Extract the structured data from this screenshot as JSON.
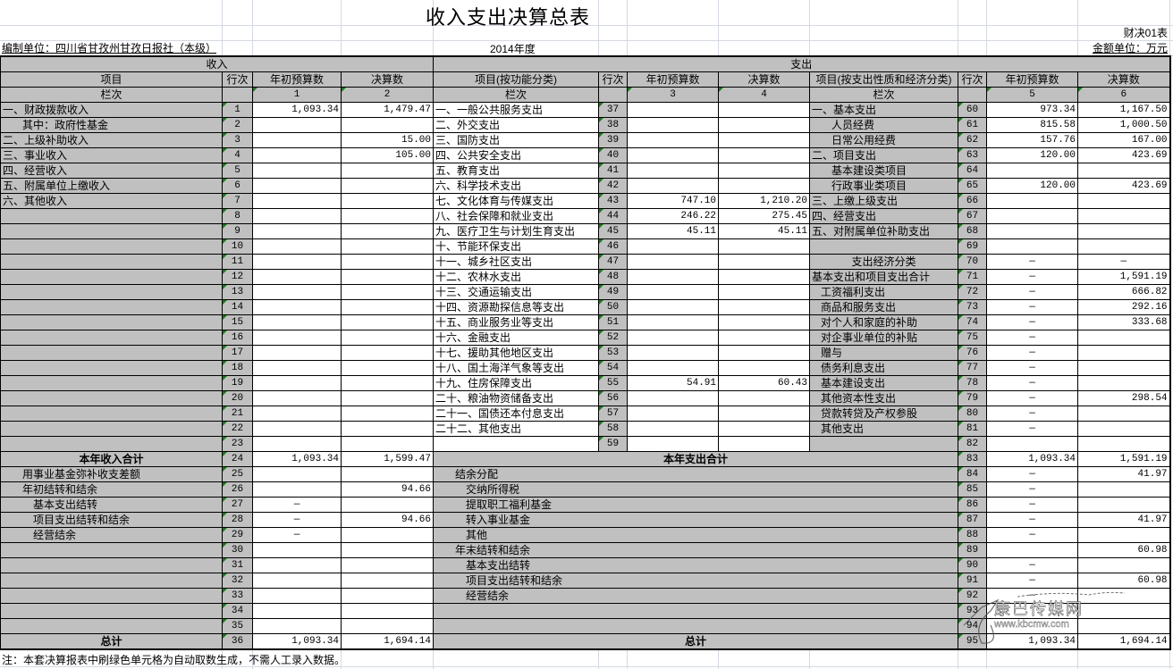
{
  "title": "收入支出决算总表",
  "form_no": "财决01表",
  "unit_name": "编制单位：四川省甘孜州甘孜日报社（本级）",
  "year": "2014年度",
  "amount_unit": "金额单位：万元",
  "note": "注：本套决算报表中刷绿色单元格为自动取数生成，不需人工录入数据。",
  "watermark": {
    "name": "康巴传媒网",
    "url": "www.kbcmw.com"
  },
  "colors": {
    "header_gray": "#c0c0c0",
    "auto_fill_marker": "#1a7a1a"
  },
  "header": {
    "income": "收入",
    "expense": "支出",
    "item": "项目",
    "line_no": "行次",
    "budget": "年初预算数",
    "final": "决算数",
    "item_by_function": "项目(按功能分类)",
    "item_by_economic": "项目(按支出性质和经济分类)",
    "column_no": "栏次",
    "col1": "1",
    "col2": "2",
    "col3": "3",
    "col4": "4",
    "col5": "5",
    "col6": "6"
  },
  "rows": [
    {
      "l": "一、财政拨款收入",
      "ll": 0,
      "ln": "1",
      "c1": "1,093.34",
      "c2": "1,479.47",
      "m": "一、一般公共服务支出",
      "mn": "37",
      "c3": "",
      "c4": "",
      "rl": "一、基本支出",
      "rll": 0,
      "rn": "60",
      "c5": "973.34",
      "c6": "1,167.50"
    },
    {
      "l": "其中：政府性基金",
      "ll": 2,
      "ln": "2",
      "c1": "",
      "c2": "",
      "m": "二、外交支出",
      "mn": "38",
      "c3": "",
      "c4": "",
      "rl": "人员经费",
      "rll": 2,
      "rn": "61",
      "c5": "815.58",
      "c6": "1,000.50"
    },
    {
      "l": "二、上级补助收入",
      "ll": 0,
      "ln": "3",
      "c1": "",
      "c2": "15.00",
      "m": "三、国防支出",
      "mn": "39",
      "c3": "",
      "c4": "",
      "rl": "日常公用经费",
      "rll": 2,
      "rn": "62",
      "c5": "157.76",
      "c6": "167.00"
    },
    {
      "l": "三、事业收入",
      "ll": 0,
      "ln": "4",
      "c1": "",
      "c2": "105.00",
      "m": "四、公共安全支出",
      "mn": "40",
      "c3": "",
      "c4": "",
      "rl": "二、项目支出",
      "rll": 0,
      "rn": "63",
      "c5": "120.00",
      "c6": "423.69"
    },
    {
      "l": "四、经营收入",
      "ll": 0,
      "ln": "5",
      "c1": "",
      "c2": "",
      "m": "五、教育支出",
      "mn": "41",
      "c3": "",
      "c4": "",
      "rl": "基本建设类项目",
      "rll": 2,
      "rn": "64",
      "c5": "",
      "c6": ""
    },
    {
      "l": "五、附属单位上缴收入",
      "ll": 0,
      "ln": "6",
      "c1": "",
      "c2": "",
      "m": "六、科学技术支出",
      "mn": "42",
      "c3": "",
      "c4": "",
      "rl": "行政事业类项目",
      "rll": 2,
      "rn": "65",
      "c5": "120.00",
      "c6": "423.69"
    },
    {
      "l": "六、其他收入",
      "ll": 0,
      "ln": "7",
      "c1": "",
      "c2": "",
      "m": "七、文化体育与传媒支出",
      "mn": "43",
      "c3": "747.10",
      "c4": "1,210.20",
      "rl": "三、上缴上级支出",
      "rll": 0,
      "rn": "66",
      "c5": "",
      "c6": ""
    },
    {
      "l": "",
      "ll": 0,
      "ln": "8",
      "c1": "",
      "c2": "",
      "m": "八、社会保障和就业支出",
      "mn": "44",
      "c3": "246.22",
      "c4": "275.45",
      "rl": "四、经营支出",
      "rll": 0,
      "rn": "67",
      "c5": "",
      "c6": ""
    },
    {
      "l": "",
      "ll": 0,
      "ln": "9",
      "c1": "",
      "c2": "",
      "m": "九、医疗卫生与计划生育支出",
      "mn": "45",
      "c3": "45.11",
      "c4": "45.11",
      "rl": "五、对附属单位补助支出",
      "rll": 0,
      "rn": "68",
      "c5": "",
      "c6": ""
    },
    {
      "l": "",
      "ll": 0,
      "ln": "10",
      "c1": "",
      "c2": "",
      "m": "十、节能环保支出",
      "mn": "46",
      "c3": "",
      "c4": "",
      "rl": "",
      "rll": 0,
      "rn": "69",
      "c5": "",
      "c6": ""
    },
    {
      "l": "",
      "ll": 0,
      "ln": "11",
      "c1": "",
      "c2": "",
      "m": "十一、城乡社区支出",
      "mn": "47",
      "c3": "",
      "c4": "",
      "rl": "支出经济分类",
      "rll": "center",
      "rn": "70",
      "c5": "—",
      "c6": "—"
    },
    {
      "l": "",
      "ll": 0,
      "ln": "12",
      "c1": "",
      "c2": "",
      "m": "十二、农林水支出",
      "mn": "48",
      "c3": "",
      "c4": "",
      "rl": "基本支出和项目支出合计",
      "rll": 0,
      "rn": "71",
      "c5": "—",
      "c6": "1,591.19"
    },
    {
      "l": "",
      "ll": 0,
      "ln": "13",
      "c1": "",
      "c2": "",
      "m": "十三、交通运输支出",
      "mn": "49",
      "c3": "",
      "c4": "",
      "rl": "工资福利支出",
      "rll": 1,
      "rn": "72",
      "c5": "—",
      "c6": "666.82"
    },
    {
      "l": "",
      "ll": 0,
      "ln": "14",
      "c1": "",
      "c2": "",
      "m": "十四、资源勘探信息等支出",
      "mn": "50",
      "c3": "",
      "c4": "",
      "rl": "商品和服务支出",
      "rll": 1,
      "rn": "73",
      "c5": "—",
      "c6": "292.16"
    },
    {
      "l": "",
      "ll": 0,
      "ln": "15",
      "c1": "",
      "c2": "",
      "m": "十五、商业服务业等支出",
      "mn": "51",
      "c3": "",
      "c4": "",
      "rl": "对个人和家庭的补助",
      "rll": 1,
      "rn": "74",
      "c5": "—",
      "c6": "333.68"
    },
    {
      "l": "",
      "ll": 0,
      "ln": "16",
      "c1": "",
      "c2": "",
      "m": "十六、金融支出",
      "mn": "52",
      "c3": "",
      "c4": "",
      "rl": "对企事业单位的补贴",
      "rll": 1,
      "rn": "75",
      "c5": "—",
      "c6": ""
    },
    {
      "l": "",
      "ll": 0,
      "ln": "17",
      "c1": "",
      "c2": "",
      "m": "十七、援助其他地区支出",
      "mn": "53",
      "c3": "",
      "c4": "",
      "rl": "赠与",
      "rll": 1,
      "rn": "76",
      "c5": "—",
      "c6": ""
    },
    {
      "l": "",
      "ll": 0,
      "ln": "18",
      "c1": "",
      "c2": "",
      "m": "十八、国土海洋气象等支出",
      "mn": "54",
      "c3": "",
      "c4": "",
      "rl": "债务利息支出",
      "rll": 1,
      "rn": "77",
      "c5": "—",
      "c6": ""
    },
    {
      "l": "",
      "ll": 0,
      "ln": "19",
      "c1": "",
      "c2": "",
      "m": "十九、住房保障支出",
      "mn": "55",
      "c3": "54.91",
      "c4": "60.43",
      "rl": "基本建设支出",
      "rll": 1,
      "rn": "78",
      "c5": "—",
      "c6": ""
    },
    {
      "l": "",
      "ll": 0,
      "ln": "20",
      "c1": "",
      "c2": "",
      "m": "二十、粮油物资储备支出",
      "mn": "56",
      "c3": "",
      "c4": "",
      "rl": "其他资本性支出",
      "rll": 1,
      "rn": "79",
      "c5": "—",
      "c6": "298.54"
    },
    {
      "l": "",
      "ll": 0,
      "ln": "21",
      "c1": "",
      "c2": "",
      "m": "二十一、国债还本付息支出",
      "mn": "57",
      "c3": "",
      "c4": "",
      "rl": "贷款转贷及产权参股",
      "rll": 1,
      "rn": "80",
      "c5": "—",
      "c6": ""
    },
    {
      "l": "",
      "ll": 0,
      "ln": "22",
      "c1": "",
      "c2": "",
      "m": "二十二、其他支出",
      "mn": "58",
      "c3": "",
      "c4": "",
      "rl": "其他支出",
      "rll": 1,
      "rn": "81",
      "c5": "—",
      "c6": ""
    },
    {
      "l": "",
      "ll": 0,
      "ln": "23",
      "c1": "",
      "c2": "",
      "m": "",
      "mn": "59",
      "c3": "",
      "c4": "",
      "rl": "",
      "rll": 0,
      "rn": "82",
      "c5": "",
      "c6": ""
    },
    {
      "l": "本年收入合计",
      "ll": "bold",
      "ln": "24",
      "c1": "1,093.34",
      "c2": "1,599.47",
      "x": "本年支出合计",
      "xl": "bold",
      "rn": "83",
      "c5": "1,093.34",
      "c6": "1,591.19"
    },
    {
      "l": "用事业基金弥补收支差额",
      "ll": 2,
      "ln": "25",
      "c1": "",
      "c2": "",
      "x": "结余分配",
      "xl": 2,
      "rn": "84",
      "c5": "—",
      "c6": "41.97"
    },
    {
      "l": "年初结转和结余",
      "ll": 2,
      "ln": "26",
      "c1": "",
      "c2": "94.66",
      "x": "交纳所得税",
      "xl": 3,
      "rn": "85",
      "c5": "—",
      "c6": ""
    },
    {
      "l": "基本支出结转",
      "ll": 3,
      "ln": "27",
      "c1": "—",
      "c2": "",
      "x": "提取职工福利基金",
      "xl": 3,
      "rn": "86",
      "c5": "—",
      "c6": ""
    },
    {
      "l": "项目支出结转和结余",
      "ll": 3,
      "ln": "28",
      "c1": "—",
      "c2": "94.66",
      "x": "转入事业基金",
      "xl": 3,
      "rn": "87",
      "c5": "—",
      "c6": "41.97"
    },
    {
      "l": "经营结余",
      "ll": 3,
      "ln": "29",
      "c1": "—",
      "c2": "",
      "x": "其他",
      "xl": 3,
      "rn": "88",
      "c5": "—",
      "c6": ""
    },
    {
      "l": "",
      "ll": 0,
      "ln": "30",
      "c1": "",
      "c2": "",
      "x": "年末结转和结余",
      "xl": 2,
      "rn": "89",
      "c5": "",
      "c6": "60.98"
    },
    {
      "l": "",
      "ll": 0,
      "ln": "31",
      "c1": "",
      "c2": "",
      "x": "基本支出结转",
      "xl": 3,
      "rn": "90",
      "c5": "—",
      "c6": ""
    },
    {
      "l": "",
      "ll": 0,
      "ln": "32",
      "c1": "",
      "c2": "",
      "x": "项目支出结转和结余",
      "xl": 3,
      "rn": "91",
      "c5": "—",
      "c6": "60.98"
    },
    {
      "l": "",
      "ll": 0,
      "ln": "33",
      "c1": "",
      "c2": "",
      "x": "经营结余",
      "xl": 3,
      "rn": "92",
      "c5": "—",
      "c6": ""
    },
    {
      "l": "",
      "ll": 0,
      "ln": "34",
      "c1": "",
      "c2": "",
      "x": "",
      "xl": 0,
      "rn": "93",
      "c5": "",
      "c6": ""
    },
    {
      "l": "",
      "ll": 0,
      "ln": "35",
      "c1": "",
      "c2": "",
      "x": "",
      "xl": 0,
      "rn": "94",
      "c5": "",
      "c6": ""
    },
    {
      "l": "总计",
      "ll": "bold",
      "ln": "36",
      "c1": "1,093.34",
      "c2": "1,694.14",
      "x": "总计",
      "xl": "bold",
      "rn": "95",
      "c5": "1,093.34",
      "c6": "1,694.14"
    }
  ]
}
